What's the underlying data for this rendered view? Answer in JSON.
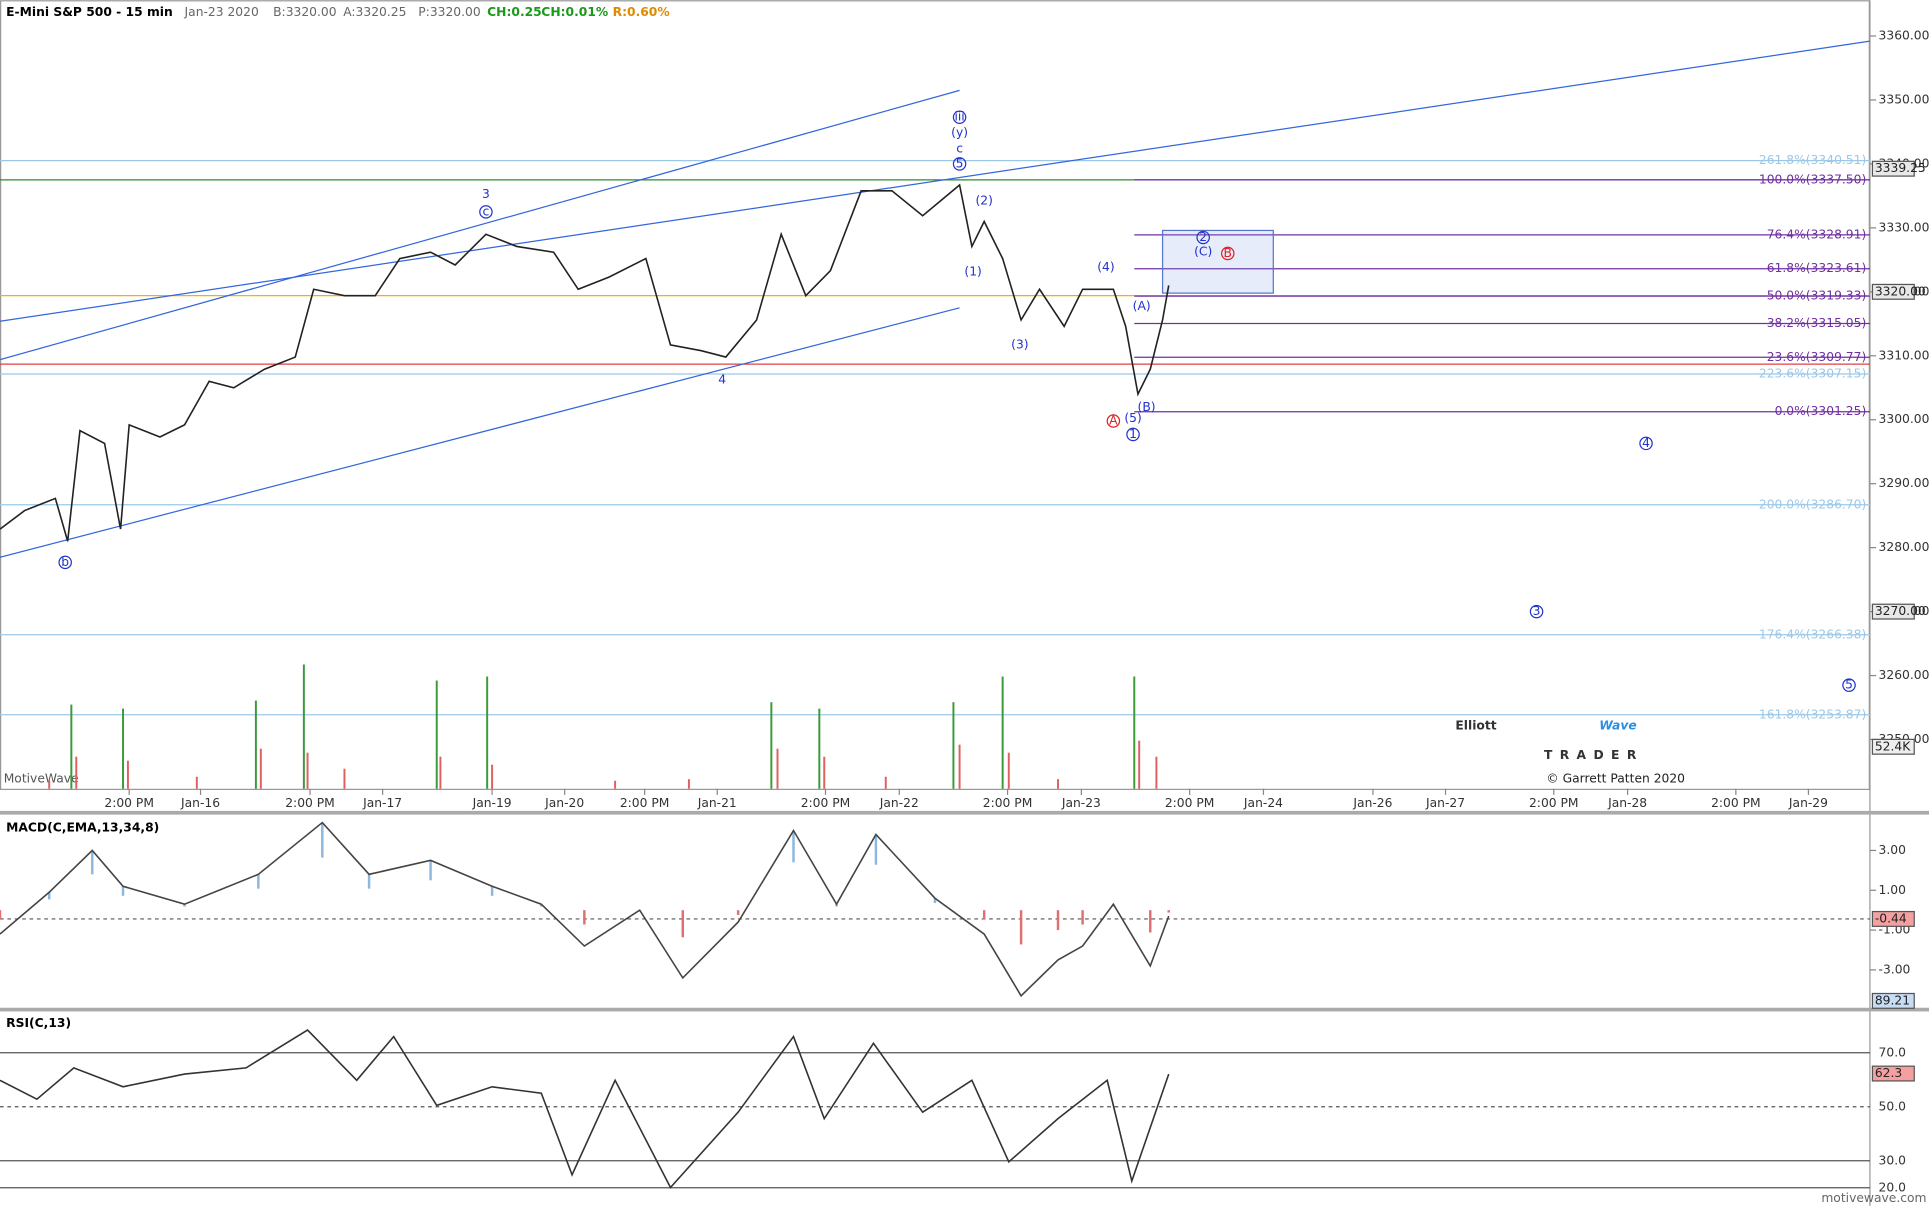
{
  "header": {
    "title": "E-Mini S&P 500 - 15 min",
    "date": "Jan-23 2020",
    "bid": "B:3320.00",
    "ask": "A:3320.25",
    "price": "P:3320.00",
    "change": "CH:0.25",
    "change_pct": "CH:0.01%",
    "range": "R:0.60%"
  },
  "watermark": "MotiveWave",
  "logo": {
    "word1": "Elliott",
    "word2": "Wave",
    "word3": "TRADER",
    "copyright": "© Garrett Patten 2020"
  },
  "footer": "motivewave.com",
  "chart_data": [
    {
      "type": "line",
      "name": "price",
      "color": "#222222",
      "x": [
        0,
        10,
        22.5,
        27.5,
        32.5,
        42.5,
        49,
        52.5,
        65,
        75,
        85,
        95,
        107.5,
        120,
        127.5,
        140,
        152.5,
        162.5,
        175,
        185,
        197.5,
        210,
        225,
        235,
        247.5,
        262.5,
        272.5,
        285,
        295,
        307.5,
        317.5,
        327.5,
        337.5,
        350,
        362.5,
        375,
        390,
        395,
        400,
        407.5,
        415,
        422.5,
        432.5,
        440,
        452.5,
        457.5,
        462.5,
        467.5,
        472.5,
        475
      ],
      "values": [
        3282.9,
        3285.8,
        3287.7,
        3281,
        3298.3,
        3296.3,
        3282.9,
        3299.2,
        3297.3,
        3299.2,
        3306,
        3305,
        3307.9,
        3309.8,
        3320.4,
        3319.4,
        3319.4,
        3325.2,
        3326.2,
        3324.2,
        3329,
        3327.1,
        3326.2,
        3320.4,
        3322.3,
        3325.2,
        3311.7,
        3310.8,
        3309.8,
        3315.6,
        3329,
        3319.4,
        3323.3,
        3335.8,
        3335.8,
        3331.9,
        3336.7,
        3327.1,
        3331,
        3325.2,
        3315.6,
        3320.4,
        3314.6,
        3320.4,
        3320.4,
        3314.6,
        3304,
        3307.9,
        3315.6,
        3321
      ],
      "xlim": [
        0,
        760
      ],
      "ylim": [
        3242.3,
        3365.6
      ],
      "xticks": [
        {
          "value": 52.5,
          "label": "2:00 PM"
        },
        {
          "value": 81.5,
          "label": "Jan-16"
        },
        {
          "value": 126,
          "label": "2:00 PM"
        },
        {
          "value": 155.5,
          "label": "Jan-17"
        },
        {
          "value": 200,
          "label": "Jan-19"
        },
        {
          "value": 229.5,
          "label": "Jan-20"
        },
        {
          "value": 262,
          "label": "2:00 PM"
        },
        {
          "value": 291.5,
          "label": "Jan-21"
        },
        {
          "value": 335.5,
          "label": "2:00 PM"
        },
        {
          "value": 365.5,
          "label": "Jan-22"
        },
        {
          "value": 409.5,
          "label": "2:00 PM"
        },
        {
          "value": 439.5,
          "label": "Jan-23"
        },
        {
          "value": 483.5,
          "label": "2:00 PM"
        },
        {
          "value": 513.5,
          "label": "Jan-24"
        },
        {
          "value": 558,
          "label": "Jan-26"
        },
        {
          "value": 587.5,
          "label": "Jan-27"
        },
        {
          "value": 631.5,
          "label": "2:00 PM"
        },
        {
          "value": 661.5,
          "label": "Jan-28"
        },
        {
          "value": 705.5,
          "label": "2:00 PM"
        },
        {
          "value": 735,
          "label": "Jan-29"
        }
      ],
      "yticks": [
        {
          "value": 3360,
          "label": "3360.00"
        },
        {
          "value": 3350,
          "label": "3350.00"
        },
        {
          "value": 3340,
          "label": "3340.00"
        },
        {
          "value": 3330,
          "label": "3330.00"
        },
        {
          "value": 3320,
          "label": "3320.00"
        },
        {
          "value": 3310,
          "label": "3310.00"
        },
        {
          "value": 3300,
          "label": "3300.00"
        },
        {
          "value": 3290,
          "label": "3290.00"
        },
        {
          "value": 3280,
          "label": "3280.00"
        },
        {
          "value": 3270,
          "label": "3270.00"
        },
        {
          "value": 3260,
          "label": "3260.00"
        },
        {
          "value": 3250,
          "label": "3250.00"
        }
      ],
      "badges": [
        {
          "value": 3339.25,
          "label": "3339.25"
        },
        {
          "value": 3320,
          "label": "3320.00"
        },
        {
          "value": 3270,
          "label": "3270.00"
        }
      ],
      "fib_purple": {
        "color": "#7030a0",
        "start": 461,
        "levels": [
          {
            "value": 3337.5,
            "label": "100.0%(3337.50)"
          },
          {
            "value": 3328.91,
            "label": "76.4%(3328.91)"
          },
          {
            "value": 3323.61,
            "label": "61.8%(3323.61)"
          },
          {
            "value": 3319.33,
            "label": "50.0%(3319.33)"
          },
          {
            "value": 3315.05,
            "label": "38.2%(3315.05)"
          },
          {
            "value": 3309.77,
            "label": "23.6%(3309.77)"
          },
          {
            "value": 3301.25,
            "label": "0.0%(3301.25)"
          }
        ]
      },
      "fib_blue": {
        "color": "#9cc8e8",
        "levels": [
          {
            "value": 3340.51,
            "label": "261.8%(3340.51)"
          },
          {
            "value": 3307.15,
            "label": "223.6%(3307.15)"
          },
          {
            "value": 3286.7,
            "label": "200.0%(3286.70)"
          },
          {
            "value": 3266.38,
            "label": "176.4%(3266.38)"
          },
          {
            "value": 3253.87,
            "label": "161.8%(3253.87)"
          }
        ]
      },
      "levels": [
        {
          "value": 3337.5,
          "color": "#2e8b2e"
        },
        {
          "value": 3319.4,
          "color": "#f0b400"
        },
        {
          "value": 3308.7,
          "color": "#e04040"
        }
      ],
      "trendlines": [
        {
          "x": [
            0,
            390
          ],
          "values": [
            3309.4,
            3351.5
          ]
        },
        {
          "x": [
            0,
            760
          ],
          "values": [
            3315.4,
            3359.2
          ]
        },
        {
          "x": [
            0,
            390
          ],
          "values": [
            3278.5,
            3317.5
          ]
        }
      ],
      "trend_color": "#3366dd",
      "zone": {
        "x": [
          472.5,
          517.5
        ],
        "values": [
          3329.6,
          3319.8
        ]
      },
      "wave_labels": [
        {
          "text": "b",
          "x": 26.5,
          "y": 3277.7,
          "circle": true
        },
        {
          "text": "3",
          "x": 197.5,
          "y": 3335.2
        },
        {
          "text": "c",
          "x": 197.5,
          "y": 3332.5,
          "circle": true
        },
        {
          "text": "4",
          "x": 293.5,
          "y": 3306.2
        },
        {
          "text": "iii",
          "x": 390,
          "y": 3347.3,
          "circle": true
        },
        {
          "text": "(y)",
          "x": 390,
          "y": 3344.8
        },
        {
          "text": "c",
          "x": 390,
          "y": 3342.3
        },
        {
          "text": "5",
          "x": 390,
          "y": 3340,
          "circle": true
        },
        {
          "text": "(2)",
          "x": 400,
          "y": 3334.2
        },
        {
          "text": "(1)",
          "x": 395.5,
          "y": 3323.1
        },
        {
          "text": "(3)",
          "x": 414.5,
          "y": 3311.7
        },
        {
          "text": "(4)",
          "x": 449.5,
          "y": 3323.8
        },
        {
          "text": "(A)",
          "x": 464,
          "y": 3317.7
        },
        {
          "text": "(B)",
          "x": 466,
          "y": 3301.9
        },
        {
          "text": "(5)",
          "x": 460.5,
          "y": 3300.2
        },
        {
          "text": "1",
          "x": 460.5,
          "y": 3297.7,
          "circle": true
        },
        {
          "text": "A",
          "x": 452.5,
          "y": 3299.8,
          "circle": true,
          "color": "#dd2222"
        },
        {
          "text": "2",
          "x": 489,
          "y": 3328.5,
          "circle": true
        },
        {
          "text": "(C)",
          "x": 489,
          "y": 3326.2
        },
        {
          "text": "B",
          "x": 499,
          "y": 3326,
          "circle": true,
          "color": "#dd2222"
        },
        {
          "text": "4",
          "x": 669,
          "y": 3296.3,
          "circle": true
        },
        {
          "text": "3",
          "x": 624.5,
          "y": 3270,
          "circle": true
        },
        {
          "text": "5",
          "x": 751.5,
          "y": 3258.5,
          "circle": true
        }
      ],
      "label_color": "#2233cc"
    },
    {
      "type": "bar",
      "name": "volume",
      "ylim": [
        0,
        155
      ],
      "badge": {
        "value": 52.4,
        "label": "52.4K"
      },
      "x": [
        29,
        50,
        104,
        123.5,
        177.5,
        198,
        313.5,
        333,
        387.5,
        407.5,
        461,
        31,
        52,
        106,
        125,
        179,
        200,
        316,
        335,
        390,
        410,
        463,
        470,
        250,
        280,
        360,
        430,
        140,
        80,
        20
      ],
      "values": [
        105,
        100,
        110,
        155,
        135,
        140,
        108,
        100,
        108,
        140,
        140,
        40,
        35,
        50,
        45,
        40,
        30,
        50,
        40,
        55,
        45,
        60,
        40,
        10,
        12,
        15,
        12,
        25,
        15,
        10
      ],
      "colors": [
        "#3a9a3a",
        "#3a9a3a",
        "#3a9a3a",
        "#3a9a3a",
        "#3a9a3a",
        "#3a9a3a",
        "#3a9a3a",
        "#3a9a3a",
        "#3a9a3a",
        "#3a9a3a",
        "#3a9a3a",
        "#e06060",
        "#e06060",
        "#e06060",
        "#e06060",
        "#e06060",
        "#e06060",
        "#e06060",
        "#e06060",
        "#e06060",
        "#e06060",
        "#e06060",
        "#e06060",
        "#e06060",
        "#e06060",
        "#e06060",
        "#e06060",
        "#e06060",
        "#e06060",
        "#e06060"
      ]
    },
    {
      "type": "line",
      "name": "macd",
      "title": "MACD(C,EMA,13,34,8)",
      "color": "#444444",
      "x": [
        0,
        20,
        37.5,
        50,
        75,
        105,
        131,
        150,
        175,
        200,
        220,
        237.5,
        260,
        277.5,
        300,
        322.5,
        340,
        356,
        380,
        400,
        415,
        430,
        440,
        452.5,
        467.5,
        475
      ],
      "values": [
        -1.2,
        0.9,
        3,
        1.2,
        0.3,
        1.8,
        4.4,
        1.8,
        2.5,
        1.2,
        0.3,
        -1.8,
        0,
        -3.4,
        -0.6,
        4,
        0.3,
        3.8,
        0.6,
        -1.2,
        -4.3,
        -2.5,
        -1.8,
        0.3,
        -2.8,
        -0.3
      ],
      "ylim": [
        -4.9,
        4.8
      ],
      "yticks": [
        {
          "value": 3,
          "label": "3.00"
        },
        {
          "value": 1,
          "label": "1.00"
        },
        {
          "value": -1,
          "label": "-1.00"
        },
        {
          "value": -3,
          "label": "-3.00"
        }
      ],
      "badge": {
        "value": -0.44,
        "label": "-0.44"
      }
    },
    {
      "type": "line",
      "name": "rsi",
      "title": "RSI(C,13)",
      "color": "#333333",
      "x": [
        0,
        15,
        30,
        50,
        75,
        100,
        125,
        145,
        160,
        177.5,
        200,
        220,
        232.5,
        250,
        272.5,
        300,
        322.5,
        335,
        355,
        375,
        395,
        410,
        430,
        450,
        460,
        475
      ],
      "values": [
        59.8,
        52.8,
        64.4,
        57.4,
        62.1,
        64.4,
        78.4,
        59.8,
        76,
        50.5,
        57.4,
        55,
        24.8,
        59.8,
        20.1,
        48,
        76,
        45.6,
        73.5,
        48,
        59.8,
        29.6,
        45.6,
        59.8,
        22.5,
        62.1
      ],
      "ylim": [
        15.6,
        85.3
      ],
      "yticks": [
        {
          "value": 70,
          "label": "70.0"
        },
        {
          "value": 50,
          "label": "50.0"
        },
        {
          "value": 30,
          "label": "30.0"
        },
        {
          "value": 20,
          "label": "20.0"
        }
      ],
      "badges": [
        {
          "value": 89.21,
          "label": "89.21"
        },
        {
          "value": 62.3,
          "label": "62.3"
        }
      ]
    }
  ]
}
